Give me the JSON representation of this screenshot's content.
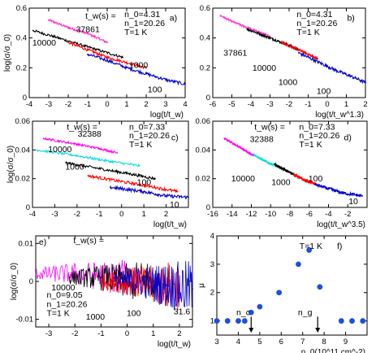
{
  "chart_data": [
    {
      "id": "a",
      "type": "line",
      "title": "",
      "panel_label": "a)",
      "xlabel": "log(t/t_w)",
      "ylabel": "log(σ/σ_0)",
      "xlim": [
        -4,
        4
      ],
      "ylim": [
        0,
        0.6
      ],
      "xticks": [
        -4,
        -3,
        -2,
        -1,
        0,
        1,
        2,
        3,
        4
      ],
      "yticks": [
        0,
        0.2,
        0.4,
        0.6
      ],
      "annotations": [
        "t_w(s) =",
        "n_0=4.31",
        "n_1=20.26",
        "T=1 K"
      ],
      "series": [
        {
          "name": "37861",
          "color": "#ff33cc",
          "x": [
            -3.0,
            -2.0,
            -1.0,
            0.0
          ],
          "y": [
            0.52,
            0.47,
            0.43,
            0.37
          ]
        },
        {
          "name": "10000",
          "color": "#000000",
          "x": [
            -3.8,
            -2.5,
            -1.0,
            0.8
          ],
          "y": [
            0.45,
            0.4,
            0.34,
            0.27
          ]
        },
        {
          "name": "1000",
          "color": "#ff0000",
          "x": [
            -2.0,
            -1.0,
            0.0,
            2.0
          ],
          "y": [
            0.37,
            0.32,
            0.27,
            0.2
          ]
        },
        {
          "name": "100",
          "color": "#0000cc",
          "x": [
            -1.0,
            0.0,
            1.0,
            2.0,
            3.0,
            4.0
          ],
          "y": [
            0.29,
            0.25,
            0.2,
            0.16,
            0.12,
            0.09
          ]
        }
      ]
    },
    {
      "id": "b",
      "type": "line",
      "title": "",
      "panel_label": "b)",
      "xlabel": "log(t/t_w^1.3)",
      "ylabel": "",
      "xlim": [
        -6,
        2
      ],
      "ylim": [
        0,
        0.6
      ],
      "xticks": [
        -6,
        -5,
        -4,
        -3,
        -2,
        -1,
        0,
        1,
        2
      ],
      "yticks": [
        0,
        0.2,
        0.4,
        0.6
      ],
      "annotations": [
        "n_0=4.31",
        "n_1=20.26",
        "T=1 K"
      ],
      "series": [
        {
          "name": "37861",
          "color": "#ff33cc",
          "x": [
            -5.6,
            -5.0,
            -4.0,
            -3.0
          ],
          "y": [
            0.55,
            0.51,
            0.46,
            0.41
          ]
        },
        {
          "name": "10000",
          "color": "#000000",
          "x": [
            -4.2,
            -3.0,
            -2.0,
            -1.5
          ],
          "y": [
            0.46,
            0.4,
            0.35,
            0.32
          ]
        },
        {
          "name": "1000",
          "color": "#ff0000",
          "x": [
            -2.4,
            -1.5,
            -0.5
          ],
          "y": [
            0.37,
            0.32,
            0.26
          ]
        },
        {
          "name": "100",
          "color": "#0000cc",
          "x": [
            -1.5,
            -0.5,
            0.5,
            1.5,
            2.0
          ],
          "y": [
            0.3,
            0.24,
            0.18,
            0.13,
            0.1
          ]
        }
      ]
    },
    {
      "id": "c",
      "type": "line",
      "title": "",
      "panel_label": "c)",
      "xlabel": "log(t/t_w)",
      "ylabel": "log(σ/σ_0)",
      "xlim": [
        -4,
        3
      ],
      "ylim": [
        0,
        0.06
      ],
      "xticks": [
        -4,
        -3,
        -2,
        -1,
        0,
        1,
        2
      ],
      "yticks": [
        0,
        0.02,
        0.04,
        0.06
      ],
      "annotations": [
        "t_w(s) =",
        "n_0=7.33",
        "n_1=20.26",
        "T=1 K"
      ],
      "series": [
        {
          "name": "32388",
          "color": "#ff00ff",
          "x": [
            -3.5,
            -2.0,
            -1.0,
            -0.2
          ],
          "y": [
            0.048,
            0.044,
            0.041,
            0.038
          ]
        },
        {
          "name": "10000",
          "color": "#00dddd",
          "x": [
            -3.8,
            -2.0,
            -0.5,
            0.8
          ],
          "y": [
            0.04,
            0.036,
            0.032,
            0.029
          ]
        },
        {
          "name": "1000",
          "color": "#000000",
          "x": [
            -2.5,
            -1.0,
            0.5,
            1.5
          ],
          "y": [
            0.031,
            0.027,
            0.023,
            0.02
          ]
        },
        {
          "name": "100",
          "color": "#ff0000",
          "x": [
            -1.5,
            0.0,
            1.5,
            2.5
          ],
          "y": [
            0.022,
            0.018,
            0.014,
            0.011
          ]
        },
        {
          "name": "10",
          "color": "#0000cc",
          "x": [
            -0.5,
            1.0,
            2.0,
            3.0
          ],
          "y": [
            0.014,
            0.011,
            0.008,
            0.007
          ]
        }
      ]
    },
    {
      "id": "d",
      "type": "line",
      "title": "",
      "panel_label": "d)",
      "xlabel": "log(t/t_w^3.5)",
      "ylabel": "",
      "xlim": [
        -16,
        0
      ],
      "ylim": [
        0,
        0.06
      ],
      "xticks": [
        -16,
        -14,
        -12,
        -10,
        -8,
        -6,
        -4,
        -2
      ],
      "yticks": [
        0,
        0.02,
        0.04,
        0.06
      ],
      "annotations": [
        "t_w(s) =",
        "n_0=7.33",
        "n_1=20.26",
        "T=1 K"
      ],
      "series": [
        {
          "name": "32388",
          "color": "#ff00ff",
          "x": [
            -14.8,
            -13.5,
            -12.5,
            -11.8
          ],
          "y": [
            0.048,
            0.043,
            0.039,
            0.036
          ]
        },
        {
          "name": "10000",
          "color": "#00dddd",
          "x": [
            -11.8,
            -10.5,
            -9.6
          ],
          "y": [
            0.037,
            0.032,
            0.029
          ]
        },
        {
          "name": "1000",
          "color": "#000000",
          "x": [
            -9.6,
            -8.5,
            -7.6
          ],
          "y": [
            0.03,
            0.026,
            0.023
          ]
        },
        {
          "name": "100",
          "color": "#ff0000",
          "x": [
            -7.6,
            -6.5,
            -5.3
          ],
          "y": [
            0.023,
            0.019,
            0.016
          ]
        },
        {
          "name": "10",
          "color": "#0000cc",
          "x": [
            -5.4,
            -4.0,
            -2.5,
            -0.5
          ],
          "y": [
            0.016,
            0.013,
            0.01,
            0.008
          ]
        }
      ]
    },
    {
      "id": "e",
      "type": "line",
      "title": "",
      "panel_label": "e)",
      "xlabel": "log(t/t_w)",
      "ylabel": "log(σ/σ_0)",
      "xlim": [
        -3.5,
        2.5
      ],
      "ylim": [
        -0.012,
        0.012
      ],
      "xticks": [
        -3,
        -2,
        -1,
        0,
        1,
        2
      ],
      "yticks": [
        -0.01,
        0,
        0.01
      ],
      "annotations": [
        "t_w(s) =",
        "n_0=9.05",
        "n_1=20.26",
        "T=1 K"
      ],
      "series": [
        {
          "name": "10000",
          "color": "#ff00ff",
          "x": [
            -3.5,
            -2.0,
            -0.5,
            0.5
          ],
          "y": [
            0.002,
            0.002,
            0.001,
            0.001
          ]
        },
        {
          "name": "1000",
          "color": "#000000",
          "x": [
            -2.2,
            -1.0,
            0.0,
            1.0
          ],
          "y": [
            0.001,
            0.001,
            0.0,
            0.0
          ]
        },
        {
          "name": "100",
          "color": "#ff0000",
          "x": [
            -1.0,
            0.0,
            1.0,
            2.0
          ],
          "y": [
            0.0,
            0.0,
            -0.001,
            -0.001
          ]
        },
        {
          "name": "31.6",
          "color": "#0000cc",
          "x": [
            -0.5,
            0.5,
            1.5,
            2.5
          ],
          "y": [
            0.0,
            0.0,
            -0.001,
            -0.002
          ]
        }
      ]
    },
    {
      "id": "f",
      "type": "scatter",
      "title": "",
      "panel_label": "f)",
      "xlabel": "n_0(10^11 cm^-2)",
      "ylabel": "μ",
      "xlim": [
        3,
        10
      ],
      "ylim": [
        0.5,
        4
      ],
      "xticks": [
        3,
        4,
        5,
        6,
        7,
        8,
        9
      ],
      "yticks": [
        1,
        2,
        3,
        4
      ],
      "annotations": [
        "T=1 K",
        "n_c",
        "n_g"
      ],
      "marker_color": "#1f4fdc",
      "x": [
        3.0,
        3.5,
        4.0,
        4.3,
        4.6,
        5.0,
        5.9,
        6.8,
        7.3,
        7.8,
        8.8,
        9.3,
        9.8
      ],
      "y": [
        1.0,
        1.0,
        1.0,
        1.0,
        1.3,
        1.5,
        2.0,
        3.0,
        3.5,
        2.2,
        1.0,
        1.0,
        1.0
      ]
    }
  ]
}
